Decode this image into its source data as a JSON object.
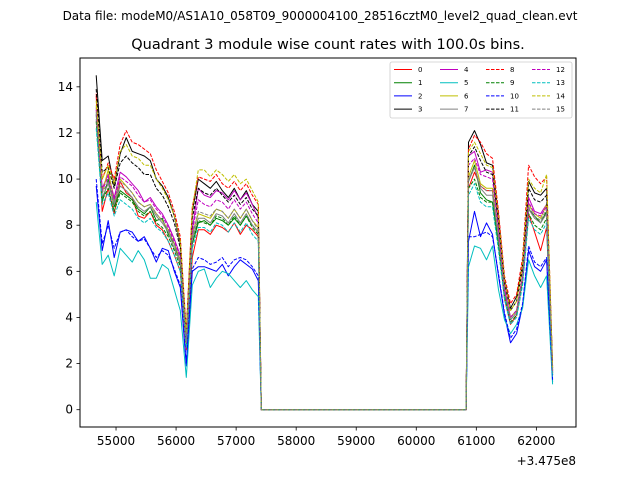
{
  "chart_data": {
    "type": "line",
    "suptitle": "Data file: modeM0/AS1A10_058T09_9000004100_28516cztM0_level2_quad_clean.evt",
    "title": "Quadrant 3 module wise count rates with 100.0s bins.",
    "xlabel": "",
    "ylabel": "",
    "x_offset_label": "+3.475e8",
    "xlim": [
      54400,
      62660
    ],
    "ylim": [
      -0.75,
      15.25
    ],
    "xticks": [
      55000,
      56000,
      57000,
      58000,
      59000,
      60000,
      61000,
      62000
    ],
    "xtick_labels": [
      "55000",
      "56000",
      "57000",
      "58000",
      "59000",
      "60000",
      "61000",
      "62000"
    ],
    "yticks": [
      0,
      2,
      4,
      6,
      8,
      10,
      12,
      14
    ],
    "ytick_labels": [
      "0",
      "2",
      "4",
      "6",
      "8",
      "10",
      "12",
      "14"
    ],
    "grid": false,
    "legend_position": "top-right",
    "legend_columns": 4,
    "x": [
      54670,
      54770,
      54870,
      54970,
      55070,
      55170,
      55270,
      55370,
      55470,
      55570,
      55670,
      55770,
      55870,
      55970,
      56070,
      56170,
      56270,
      56370,
      56470,
      56570,
      56670,
      56770,
      56870,
      56970,
      57070,
      57170,
      57270,
      57370,
      57420,
      60830,
      60870,
      60970,
      61070,
      61170,
      61270,
      61370,
      61470,
      61570,
      61670,
      61770,
      61870,
      61970,
      62070,
      62170,
      62270
    ],
    "series": [
      {
        "name": "0",
        "color": "#ff0000",
        "dash": "solid",
        "values": [
          13.6,
          8.6,
          9.6,
          8.5,
          9.9,
          9.4,
          9.2,
          8.4,
          8.3,
          8.6,
          8.0,
          7.8,
          7.3,
          6.7,
          6.0,
          2.6,
          6.6,
          7.8,
          7.8,
          7.6,
          8.0,
          7.9,
          7.7,
          8.1,
          7.6,
          8.0,
          7.8,
          7.5,
          0,
          0,
          9.6,
          10.3,
          9.7,
          9.5,
          9.5,
          7.3,
          4.8,
          3.7,
          4.1,
          5.6,
          8.5,
          7.7,
          6.9,
          7.9,
          1.5
        ]
      },
      {
        "name": "1",
        "color": "#008000",
        "dash": "solid",
        "values": [
          12.8,
          9.0,
          10.0,
          8.8,
          9.5,
          9.3,
          9.1,
          8.7,
          8.5,
          8.8,
          8.2,
          8.3,
          7.6,
          7.2,
          6.3,
          2.8,
          7.2,
          8.1,
          8.2,
          8.0,
          8.3,
          8.2,
          8.0,
          8.3,
          8.0,
          8.4,
          8.0,
          7.7,
          0,
          0,
          9.9,
          10.6,
          9.4,
          9.1,
          9.0,
          7.2,
          5.0,
          4.0,
          4.3,
          5.7,
          8.7,
          8.4,
          8.1,
          8.6,
          1.6
        ]
      },
      {
        "name": "2",
        "color": "#0000ff",
        "dash": "solid",
        "values": [
          9.7,
          6.9,
          8.2,
          6.6,
          7.7,
          7.8,
          7.7,
          7.3,
          7.5,
          7.0,
          6.4,
          7.0,
          6.9,
          6.0,
          5.3,
          1.9,
          6.0,
          6.2,
          6.2,
          6.1,
          6.0,
          6.3,
          5.8,
          6.2,
          6.5,
          6.3,
          6.1,
          5.6,
          0,
          0,
          7.3,
          8.6,
          7.5,
          8.1,
          7.6,
          5.8,
          4.1,
          2.9,
          3.3,
          4.5,
          6.9,
          6.2,
          6.0,
          6.5,
          1.2
        ]
      },
      {
        "name": "3",
        "color": "#000000",
        "dash": "solid",
        "values": [
          14.5,
          10.8,
          11.0,
          9.7,
          11.1,
          11.8,
          11.2,
          11.1,
          11.0,
          10.8,
          10.0,
          9.7,
          9.2,
          8.4,
          7.2,
          3.3,
          8.6,
          10.0,
          9.8,
          9.6,
          9.9,
          9.5,
          9.2,
          9.6,
          9.1,
          9.5,
          8.9,
          8.6,
          0,
          0,
          11.6,
          12.1,
          11.5,
          10.7,
          10.6,
          8.4,
          5.6,
          4.4,
          4.9,
          6.3,
          9.9,
          9.4,
          9.3,
          9.6,
          1.8
        ]
      },
      {
        "name": "4",
        "color": "#bf00bf",
        "dash": "solid",
        "values": [
          13.1,
          9.6,
          10.2,
          9.2,
          10.3,
          10.1,
          9.8,
          9.5,
          9.0,
          9.2,
          8.8,
          8.5,
          8.0,
          7.4,
          6.7,
          3.0,
          7.8,
          9.6,
          9.3,
          9.2,
          9.5,
          9.4,
          9.1,
          9.5,
          9.1,
          9.4,
          8.9,
          8.3,
          0,
          0,
          11.0,
          11.2,
          10.3,
          10.4,
          10.3,
          8.0,
          5.3,
          4.0,
          4.3,
          5.8,
          9.2,
          8.6,
          8.5,
          8.9,
          1.7
        ]
      },
      {
        "name": "5",
        "color": "#00bfbf",
        "dash": "solid",
        "values": [
          9.0,
          6.3,
          6.7,
          5.8,
          7.0,
          6.7,
          6.4,
          6.9,
          6.5,
          5.7,
          5.7,
          6.3,
          6.1,
          5.2,
          4.3,
          1.4,
          5.4,
          6.0,
          6.1,
          5.3,
          5.7,
          6.0,
          5.9,
          5.6,
          5.3,
          5.6,
          5.2,
          4.9,
          0,
          0,
          6.2,
          7.1,
          7.0,
          6.5,
          7.1,
          5.2,
          3.9,
          3.3,
          3.7,
          4.4,
          6.5,
          5.8,
          5.3,
          5.8,
          1.1
        ]
      },
      {
        "name": "6",
        "color": "#bfbf00",
        "dash": "solid",
        "values": [
          13.2,
          9.4,
          10.4,
          9.0,
          10.0,
          9.7,
          9.4,
          9.0,
          8.8,
          8.9,
          8.5,
          8.2,
          7.8,
          7.2,
          6.5,
          3.0,
          7.6,
          8.5,
          8.4,
          8.3,
          8.7,
          8.6,
          8.3,
          8.7,
          8.3,
          8.7,
          8.2,
          7.9,
          0,
          0,
          10.1,
          10.8,
          9.8,
          9.6,
          9.6,
          7.5,
          5.1,
          4.0,
          4.3,
          5.8,
          8.9,
          8.5,
          8.3,
          8.9,
          1.6
        ]
      },
      {
        "name": "7",
        "color": "#808080",
        "dash": "solid",
        "values": [
          12.6,
          9.2,
          9.8,
          8.9,
          9.7,
          9.5,
          9.2,
          8.8,
          8.6,
          8.8,
          8.4,
          8.1,
          7.7,
          7.0,
          6.4,
          2.9,
          7.4,
          8.3,
          8.3,
          8.1,
          8.5,
          8.4,
          8.1,
          8.5,
          8.1,
          8.5,
          8.0,
          7.7,
          0,
          0,
          9.9,
          10.5,
          9.6,
          9.3,
          9.3,
          7.4,
          5.0,
          3.9,
          4.2,
          5.7,
          8.7,
          8.3,
          8.1,
          8.5,
          1.6
        ]
      },
      {
        "name": "8",
        "color": "#ff0000",
        "dash": "dashed",
        "values": [
          13.7,
          10.0,
          10.7,
          10.0,
          11.5,
          12.1,
          11.6,
          11.5,
          11.3,
          11.1,
          10.4,
          9.9,
          9.4,
          8.6,
          7.5,
          3.4,
          8.8,
          10.1,
          10.0,
          9.9,
          10.2,
          9.8,
          9.6,
          9.9,
          9.5,
          9.8,
          9.3,
          8.9,
          0,
          0,
          11.3,
          11.9,
          11.6,
          11.1,
          10.9,
          8.6,
          5.8,
          4.6,
          5.0,
          6.6,
          10.6,
          10.1,
          9.8,
          10.1,
          1.9
        ]
      },
      {
        "name": "9",
        "color": "#008000",
        "dash": "dashed",
        "values": [
          12.5,
          9.1,
          9.6,
          8.6,
          9.4,
          9.2,
          9.0,
          8.6,
          8.4,
          8.6,
          8.1,
          7.9,
          7.5,
          6.9,
          6.2,
          2.8,
          7.2,
          8.2,
          8.1,
          8.0,
          8.4,
          8.3,
          8.0,
          8.4,
          8.0,
          8.4,
          7.9,
          7.6,
          0,
          0,
          9.6,
          10.0,
          9.2,
          9.0,
          9.0,
          7.1,
          4.9,
          3.8,
          4.1,
          5.5,
          8.5,
          8.0,
          7.8,
          8.3,
          1.5
        ]
      },
      {
        "name": "10",
        "color": "#0000ff",
        "dash": "dashed",
        "values": [
          10.0,
          7.2,
          8.0,
          7.0,
          7.7,
          7.8,
          7.5,
          7.3,
          7.4,
          7.0,
          6.6,
          6.9,
          6.7,
          6.1,
          5.4,
          2.0,
          6.1,
          6.6,
          6.5,
          6.3,
          6.4,
          6.6,
          6.2,
          6.5,
          6.6,
          6.5,
          6.2,
          5.8,
          0,
          0,
          7.5,
          7.5,
          7.6,
          7.7,
          7.5,
          5.9,
          4.2,
          3.1,
          3.5,
          4.6,
          7.1,
          6.4,
          6.2,
          6.6,
          1.3
        ]
      },
      {
        "name": "11",
        "color": "#000000",
        "dash": "dashed",
        "values": [
          13.9,
          10.3,
          10.5,
          9.6,
          10.7,
          11.0,
          10.7,
          10.5,
          10.2,
          10.2,
          9.6,
          9.3,
          8.8,
          8.1,
          7.0,
          3.2,
          8.3,
          9.6,
          9.4,
          9.3,
          9.6,
          9.3,
          9.0,
          9.3,
          8.9,
          9.2,
          8.7,
          8.4,
          0,
          0,
          11.0,
          11.4,
          10.8,
          10.3,
          10.2,
          8.1,
          5.5,
          4.3,
          4.7,
          6.1,
          9.6,
          9.1,
          9.0,
          9.3,
          1.7
        ]
      },
      {
        "name": "12",
        "color": "#bf00bf",
        "dash": "dashed",
        "values": [
          13.0,
          9.5,
          10.1,
          9.1,
          10.1,
          9.9,
          9.7,
          9.3,
          9.0,
          9.1,
          8.7,
          8.4,
          7.9,
          7.3,
          6.6,
          3.0,
          7.7,
          9.1,
          8.9,
          8.8,
          9.1,
          9.0,
          8.7,
          9.1,
          8.7,
          9.0,
          8.5,
          8.1,
          0,
          0,
          10.6,
          10.9,
          10.2,
          10.1,
          10.0,
          7.8,
          5.2,
          4.0,
          4.3,
          5.8,
          9.0,
          8.5,
          8.4,
          8.8,
          1.6
        ]
      },
      {
        "name": "13",
        "color": "#00bfbf",
        "dash": "dashed",
        "values": [
          12.2,
          8.9,
          9.4,
          8.4,
          9.1,
          8.9,
          8.7,
          8.3,
          8.1,
          8.3,
          7.9,
          7.7,
          7.3,
          6.7,
          6.0,
          2.7,
          7.0,
          7.9,
          7.9,
          7.7,
          8.1,
          8.0,
          7.7,
          8.1,
          7.7,
          8.1,
          7.6,
          7.3,
          0,
          0,
          9.3,
          9.8,
          9.0,
          8.8,
          8.8,
          6.9,
          4.8,
          3.7,
          4.0,
          5.4,
          8.3,
          7.8,
          7.6,
          8.1,
          1.5
        ]
      },
      {
        "name": "14",
        "color": "#bfbf00",
        "dash": "dashed",
        "values": [
          13.4,
          10.0,
          10.6,
          9.8,
          11.2,
          11.5,
          11.0,
          10.9,
          10.6,
          10.6,
          10.0,
          9.6,
          9.1,
          8.4,
          7.3,
          3.3,
          8.7,
          10.4,
          10.4,
          10.1,
          10.4,
          10.2,
          9.9,
          10.2,
          9.8,
          10.0,
          9.5,
          9.0,
          0,
          0,
          11.2,
          11.6,
          11.1,
          10.6,
          10.5,
          8.3,
          5.6,
          4.3,
          4.7,
          6.3,
          10.0,
          9.6,
          9.4,
          10.2,
          1.8
        ]
      },
      {
        "name": "15",
        "color": "#808080",
        "dash": "dashed",
        "values": [
          12.9,
          9.4,
          9.9,
          9.0,
          9.9,
          9.7,
          9.4,
          9.0,
          8.8,
          8.9,
          8.5,
          8.2,
          7.8,
          7.2,
          6.5,
          2.9,
          7.5,
          8.6,
          8.5,
          8.4,
          8.7,
          8.6,
          8.3,
          8.7,
          8.3,
          8.7,
          8.2,
          7.8,
          0,
          0,
          10.0,
          10.5,
          9.7,
          9.5,
          9.5,
          7.5,
          5.1,
          3.9,
          4.2,
          5.7,
          8.8,
          8.4,
          8.2,
          8.7,
          1.6
        ]
      }
    ]
  }
}
